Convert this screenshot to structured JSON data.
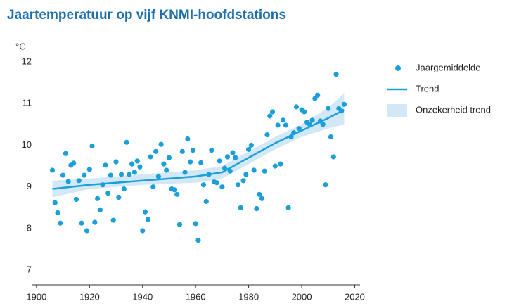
{
  "chart_data": {
    "type": "scatter",
    "title": "Jaartemperatuur op vijf KNMI-hoofdstations",
    "y_label": "°C",
    "xlim": [
      1895,
      2022
    ],
    "xticks": [
      1900,
      1920,
      1940,
      1960,
      1980,
      2000,
      2020
    ],
    "ylim": [
      6.65,
      12.2
    ],
    "yticks": [
      7,
      8,
      9,
      10,
      11,
      12
    ],
    "grid": false,
    "legend": "right",
    "series": [
      {
        "name": "Jaargemiddelde",
        "kind": "points",
        "color": "#1a9fd8",
        "x": [
          1906,
          1907,
          1908,
          1909,
          1910,
          1911,
          1912,
          1913,
          1914,
          1915,
          1916,
          1917,
          1918,
          1919,
          1920,
          1921,
          1922,
          1923,
          1924,
          1925,
          1926,
          1927,
          1928,
          1929,
          1930,
          1931,
          1932,
          1933,
          1934,
          1935,
          1936,
          1937,
          1938,
          1939,
          1940,
          1941,
          1942,
          1943,
          1944,
          1945,
          1946,
          1947,
          1948,
          1949,
          1950,
          1951,
          1952,
          1953,
          1954,
          1955,
          1956,
          1957,
          1958,
          1959,
          1960,
          1961,
          1962,
          1963,
          1964,
          1965,
          1966,
          1967,
          1968,
          1969,
          1970,
          1971,
          1972,
          1973,
          1974,
          1975,
          1976,
          1977,
          1978,
          1979,
          1980,
          1981,
          1982,
          1983,
          1984,
          1985,
          1986,
          1987,
          1988,
          1989,
          1990,
          1991,
          1992,
          1993,
          1994,
          1995,
          1996,
          1997,
          1998,
          1999,
          2000,
          2001,
          2002,
          2003,
          2004,
          2005,
          2006,
          2007,
          2008,
          2009,
          2010,
          2011,
          2012,
          2013,
          2014,
          2015,
          2016
        ],
        "values": [
          9.4,
          8.62,
          8.38,
          8.13,
          9.28,
          9.8,
          9.13,
          9.52,
          9.57,
          8.7,
          9.15,
          8.13,
          9.28,
          7.95,
          9.42,
          9.98,
          8.15,
          8.72,
          8.45,
          9.05,
          9.52,
          8.85,
          9.28,
          8.2,
          9.6,
          8.75,
          9.3,
          8.95,
          10.07,
          9.3,
          9.55,
          9.35,
          9.62,
          9.48,
          7.95,
          8.4,
          8.22,
          9.72,
          9.0,
          9.85,
          9.25,
          10.02,
          9.55,
          9.4,
          9.7,
          8.95,
          8.93,
          8.82,
          8.1,
          9.85,
          9.35,
          10.15,
          9.6,
          9.88,
          8.12,
          7.72,
          9.58,
          9.05,
          8.65,
          9.3,
          9.88,
          9.12,
          9.1,
          9.62,
          9.0,
          9.45,
          9.72,
          9.38,
          9.82,
          9.7,
          9.05,
          8.5,
          9.15,
          9.3,
          9.9,
          10.0,
          9.4,
          8.48,
          8.82,
          8.72,
          9.38,
          10.25,
          10.7,
          10.8,
          9.5,
          10.48,
          9.55,
          10.6,
          10.48,
          8.5,
          10.2,
          10.3,
          10.92,
          10.4,
          10.85,
          10.8,
          10.55,
          10.5,
          10.6,
          11.12,
          11.2,
          10.58,
          10.5,
          9.05,
          10.88,
          10.2,
          9.72,
          11.7,
          10.88,
          10.82,
          10.98
        ]
      },
      {
        "name": "Trend",
        "kind": "line",
        "color": "#1a9fd8",
        "x": [
          1906,
          1920,
          1940,
          1960,
          1970,
          1980,
          1990,
          2000,
          2010,
          2016
        ],
        "values": [
          8.95,
          9.05,
          9.15,
          9.25,
          9.35,
          9.7,
          10.05,
          10.35,
          10.65,
          10.85
        ]
      },
      {
        "name": "Onzekerheid trend",
        "kind": "band",
        "color": "#d3e8f7",
        "x": [
          1906,
          1920,
          1940,
          1960,
          1970,
          1980,
          1990,
          2000,
          2010,
          2016
        ],
        "lower": [
          8.75,
          8.95,
          9.05,
          9.1,
          9.2,
          9.55,
          9.9,
          10.2,
          10.4,
          10.5
        ],
        "upper": [
          9.15,
          9.2,
          9.3,
          9.4,
          9.5,
          9.85,
          10.2,
          10.5,
          10.9,
          11.25
        ]
      }
    ]
  }
}
